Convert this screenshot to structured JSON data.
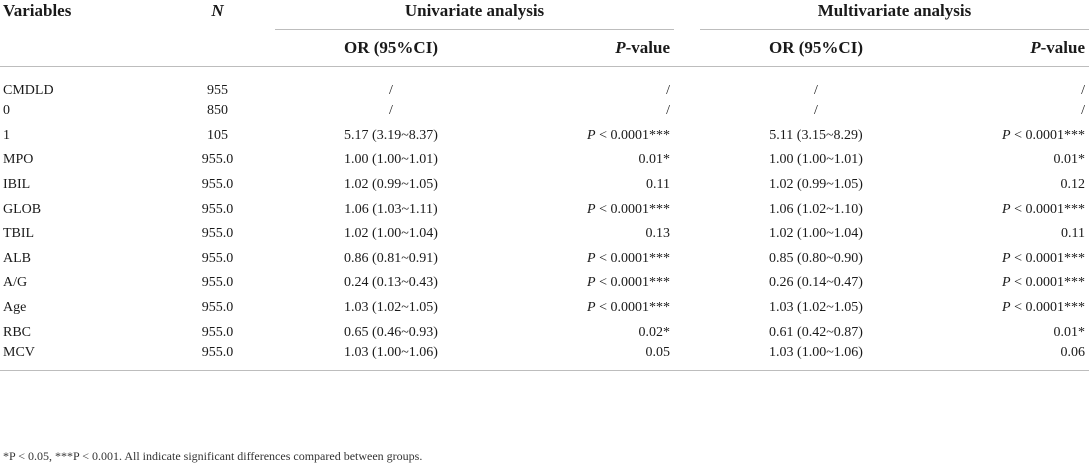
{
  "header": {
    "variables": "Variables",
    "n": "N",
    "univariate": "Univariate analysis",
    "multivariate": "Multivariate analysis",
    "or_label": "OR (95%CI)",
    "p_prefix": "P",
    "p_suffix": "-value"
  },
  "rows": [
    {
      "var": "CMDLD",
      "n": "955",
      "or1": "/",
      "p1": "/",
      "or2": "/",
      "p2": "/"
    },
    {
      "var": "0",
      "n": "850",
      "or1": "/",
      "p1": "/",
      "or2": "/",
      "p2": "/"
    },
    {
      "var": "1",
      "n": "105",
      "or1": "5.17 (3.19~8.37)",
      "p1": "P < 0.0001***",
      "or2": "5.11 (3.15~8.29)",
      "p2": "P < 0.0001***"
    },
    {
      "var": "MPO",
      "n": "955.0",
      "or1": "1.00 (1.00~1.01)",
      "p1": "0.01*",
      "or2": "1.00 (1.00~1.01)",
      "p2": "0.01*"
    },
    {
      "var": "IBIL",
      "n": "955.0",
      "or1": "1.02 (0.99~1.05)",
      "p1": "0.11",
      "or2": "1.02 (0.99~1.05)",
      "p2": "0.12"
    },
    {
      "var": "GLOB",
      "n": "955.0",
      "or1": "1.06 (1.03~1.11)",
      "p1": "P < 0.0001***",
      "or2": "1.06 (1.02~1.10)",
      "p2": "P < 0.0001***"
    },
    {
      "var": "TBIL",
      "n": "955.0",
      "or1": "1.02 (1.00~1.04)",
      "p1": "0.13",
      "or2": "1.02 (1.00~1.04)",
      "p2": "0.11"
    },
    {
      "var": "ALB",
      "n": "955.0",
      "or1": "0.86 (0.81~0.91)",
      "p1": "P < 0.0001***",
      "or2": "0.85 (0.80~0.90)",
      "p2": "P < 0.0001***"
    },
    {
      "var": "A/G",
      "n": "955.0",
      "or1": "0.24 (0.13~0.43)",
      "p1": "P < 0.0001***",
      "or2": "0.26 (0.14~0.47)",
      "p2": "P < 0.0001***"
    },
    {
      "var": "Age",
      "n": "955.0",
      "or1": "1.03 (1.02~1.05)",
      "p1": "P < 0.0001***",
      "or2": "1.03 (1.02~1.05)",
      "p2": "P < 0.0001***"
    },
    {
      "var": "RBC",
      "n": "955.0",
      "or1": "0.65 (0.46~0.93)",
      "p1": "0.02*",
      "or2": "0.61 (0.42~0.87)",
      "p2": "0.01*"
    },
    {
      "var": "MCV",
      "n": "955.0",
      "or1": "1.03 (1.00~1.06)",
      "p1": "0.05",
      "or2": "1.03 (1.00~1.06)",
      "p2": "0.06"
    }
  ],
  "footnote": "*P < 0.05, ***P < 0.001. All indicate significant differences compared between groups."
}
